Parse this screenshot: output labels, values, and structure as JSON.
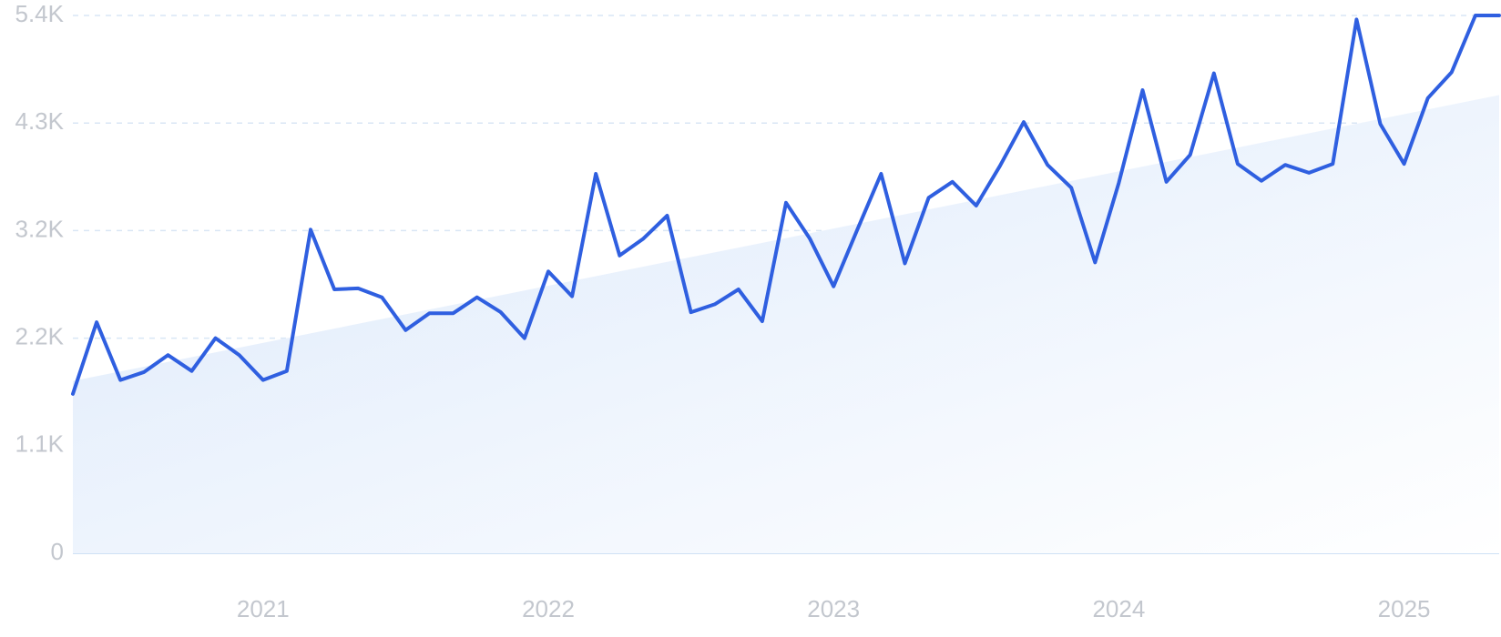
{
  "chart_data": {
    "type": "line",
    "title": "",
    "xlabel": "",
    "ylabel": "",
    "grid": true,
    "legend": "none",
    "colors": {
      "line": "#2f5fe0",
      "area_start": "#dce9fb",
      "area_end": "#ffffff",
      "grid": "#d9e6f5",
      "tick_text": "#c3c7ce"
    },
    "ylim": [
      0,
      5400
    ],
    "y_ticks": [
      {
        "value": 0,
        "label": "0"
      },
      {
        "value": 1080,
        "label": "1.1K"
      },
      {
        "value": 2160,
        "label": "2.2K"
      },
      {
        "value": 3240,
        "label": "3.2K"
      },
      {
        "value": 4320,
        "label": "4.3K"
      },
      {
        "value": 5400,
        "label": "5.4K"
      }
    ],
    "x_ticks": [
      {
        "value": "2021-01",
        "label": "2021"
      },
      {
        "value": "2022-01",
        "label": "2022"
      },
      {
        "value": "2023-01",
        "label": "2023"
      },
      {
        "value": "2024-01",
        "label": "2024"
      },
      {
        "value": "2025-01",
        "label": "2025"
      }
    ],
    "trend": {
      "start": 1730,
      "end": 4600
    },
    "series": [
      {
        "x": [
          "2020-05",
          "2020-06",
          "2020-07",
          "2020-08",
          "2020-09",
          "2020-10",
          "2020-11",
          "2020-12",
          "2021-01",
          "2021-02",
          "2021-03",
          "2021-04",
          "2021-05",
          "2021-06",
          "2021-07",
          "2021-08",
          "2021-09",
          "2021-10",
          "2021-11",
          "2021-12",
          "2022-01",
          "2022-02",
          "2022-03",
          "2022-04",
          "2022-05",
          "2022-06",
          "2022-07",
          "2022-08",
          "2022-09",
          "2022-10",
          "2022-11",
          "2022-12",
          "2023-01",
          "2023-02",
          "2023-03",
          "2023-04",
          "2023-05",
          "2023-06",
          "2023-07",
          "2023-08",
          "2023-09",
          "2023-10",
          "2023-11",
          "2023-12",
          "2024-01",
          "2024-02",
          "2024-03",
          "2024-04",
          "2024-05",
          "2024-06",
          "2024-07",
          "2024-08",
          "2024-09",
          "2024-10",
          "2024-11",
          "2024-12",
          "2025-01",
          "2025-02",
          "2025-03",
          "2025-04",
          "2025-05"
        ],
        "y": [
          1600,
          2320,
          1740,
          1820,
          1990,
          1830,
          2160,
          1990,
          1740,
          1830,
          3250,
          2650,
          2660,
          2570,
          2240,
          2410,
          2410,
          2570,
          2420,
          2160,
          2830,
          2580,
          3810,
          2990,
          3160,
          3390,
          2420,
          2500,
          2650,
          2330,
          3520,
          3160,
          2680,
          3250,
          3810,
          2910,
          3570,
          3730,
          3490,
          3890,
          4330,
          3900,
          3670,
          2920,
          3720,
          4650,
          3730,
          4000,
          4820,
          3910,
          3740,
          3900,
          3820,
          3910,
          5360,
          4310,
          3910,
          4570,
          4830,
          5400,
          5400
        ]
      }
    ]
  }
}
